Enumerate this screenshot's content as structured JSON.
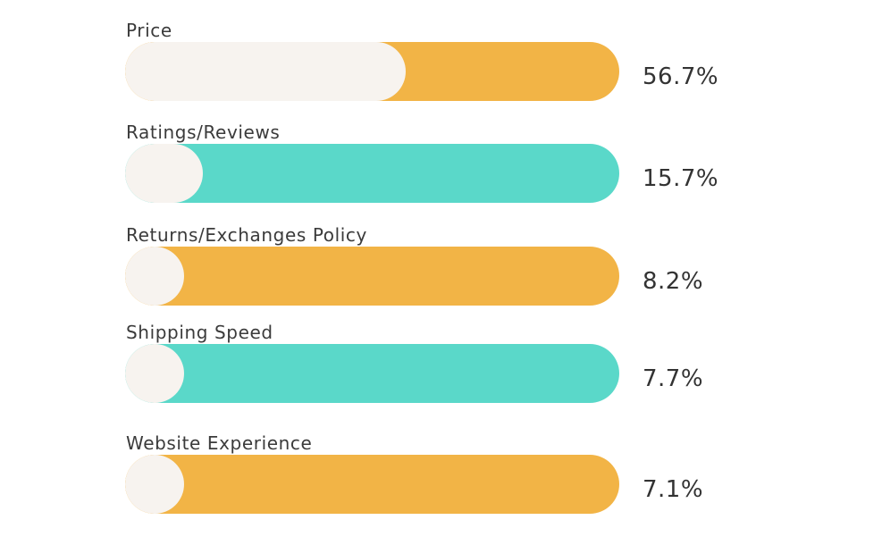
{
  "chart_data": {
    "type": "bar",
    "categories": [
      "Price",
      "Ratings/Reviews",
      "Returns/Exchanges Policy",
      "Shipping Speed",
      "Website Experience"
    ],
    "values": [
      56.7,
      15.7,
      8.2,
      7.7,
      7.1
    ],
    "value_labels": [
      "56.7%",
      "15.7%",
      "8.2%",
      "7.7%",
      "7.1%"
    ],
    "unit": "%",
    "bar_colors": [
      "#f2b446",
      "#5ad8c9",
      "#f2b446",
      "#5ad8c9",
      "#f2b446"
    ],
    "fill_color": "#f7f3ef",
    "xlim": [
      0,
      100
    ],
    "orientation": "horizontal",
    "legend": "none",
    "grid": false
  }
}
